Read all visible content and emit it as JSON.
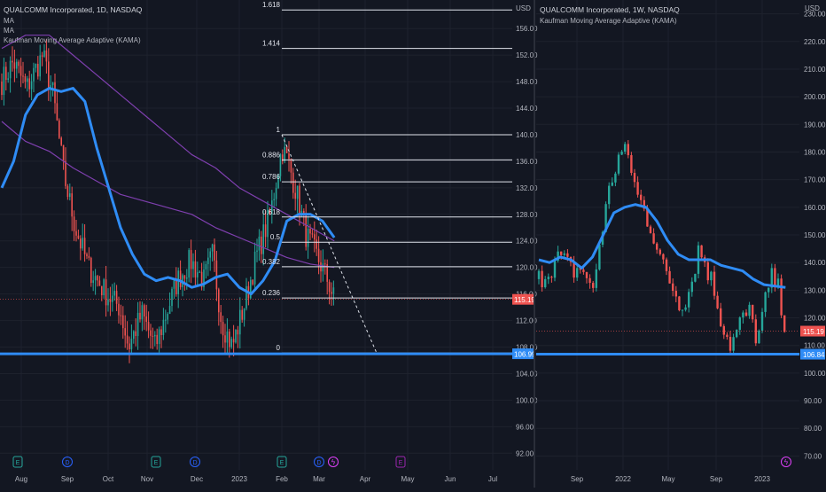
{
  "theme": {
    "background": "#131722",
    "grid": "#1e222d",
    "divider": "#2a2e39",
    "text": "#b2b5be",
    "up": "#26a69a",
    "down": "#ef5350",
    "kama": "#2f8cf5",
    "ma": "#7e3fae",
    "fib_line": "#e0e3eb",
    "support": "#2f8cf5",
    "last_price_tag": "#ef5350",
    "support_tag": "#2f8cf5"
  },
  "chart_data": [
    {
      "type": "candlestick",
      "title": "QUALCOMM Incorporated, 1D, NASDAQ",
      "indicators": [
        "MA",
        "MA",
        "Kaufman Moving Average Adaptive (KAMA)"
      ],
      "price_unit": "USD",
      "ylim": [
        89.5,
        160.3
      ],
      "yticks": [
        "92.00",
        "96.00",
        "100.00",
        "104.00",
        "108.00",
        "112.00",
        "116.00",
        "120.00",
        "124.00",
        "128.00",
        "132.00",
        "136.00",
        "140.00",
        "144.00",
        "148.00",
        "152.00",
        "156.00"
      ],
      "xticks": [
        "Aug",
        "Sep",
        "Oct",
        "Nov",
        "Dec",
        "2023",
        "Feb",
        "Mar",
        "Apr",
        "May",
        "Jun",
        "Jul"
      ],
      "last_price": "115.19",
      "support_price": "106.99",
      "support_level": 106.99,
      "fib_levels": [
        {
          "label": "1.618",
          "price": 158.8
        },
        {
          "label": "1.414",
          "price": 153.0
        },
        {
          "label": "1",
          "price": 140.0
        },
        {
          "label": "0.886",
          "price": 136.2
        },
        {
          "label": "0.786",
          "price": 132.9
        },
        {
          "label": "0.618",
          "price": 127.6
        },
        {
          "label": "0.5",
          "price": 123.8
        },
        {
          "label": "0.382",
          "price": 120.1
        },
        {
          "label": "0.236",
          "price": 115.4
        },
        {
          "label": "0",
          "price": 107.1
        }
      ],
      "fib_level_values": [
        "1.618",
        "1.414",
        "1",
        "0.886",
        "0.786",
        "0.618",
        "0.5",
        "0.382",
        "0.236",
        "0"
      ],
      "kama_points": [
        [
          0,
          132
        ],
        [
          1,
          136
        ],
        [
          2,
          143
        ],
        [
          3,
          146
        ],
        [
          4,
          147
        ],
        [
          5,
          146.5
        ],
        [
          6,
          147
        ],
        [
          7,
          145
        ],
        [
          8,
          138
        ],
        [
          9,
          132
        ],
        [
          10,
          126
        ],
        [
          11,
          122
        ],
        [
          12,
          119
        ],
        [
          13,
          118
        ],
        [
          14,
          118.5
        ],
        [
          15,
          118
        ],
        [
          16,
          117
        ],
        [
          17,
          117.5
        ],
        [
          18,
          118.5
        ],
        [
          19,
          119
        ],
        [
          20,
          117
        ],
        [
          21,
          116
        ],
        [
          22,
          118
        ],
        [
          23,
          121
        ],
        [
          24,
          127
        ],
        [
          25,
          128
        ],
        [
          26,
          128
        ],
        [
          27,
          127
        ],
        [
          28,
          124.5
        ]
      ],
      "ma1_points": [
        [
          0,
          153
        ],
        [
          2,
          155
        ],
        [
          4,
          155
        ],
        [
          6,
          152
        ],
        [
          8,
          149
        ],
        [
          10,
          146
        ],
        [
          12,
          143
        ],
        [
          14,
          140
        ],
        [
          16,
          137
        ],
        [
          18,
          135
        ],
        [
          20,
          132
        ],
        [
          22,
          130
        ],
        [
          24,
          128
        ],
        [
          26,
          126
        ],
        [
          28,
          124
        ]
      ],
      "ma2_points": [
        [
          0,
          142
        ],
        [
          2,
          139
        ],
        [
          4,
          137.5
        ],
        [
          6,
          135
        ],
        [
          8,
          133
        ],
        [
          10,
          131
        ],
        [
          12,
          130
        ],
        [
          14,
          129
        ],
        [
          16,
          128
        ],
        [
          18,
          126
        ],
        [
          20,
          124.5
        ],
        [
          22,
          123
        ],
        [
          24,
          121.5
        ],
        [
          26,
          120.5
        ],
        [
          28,
          120
        ]
      ],
      "events": [
        "E",
        "D",
        "E",
        "D",
        "E",
        "D",
        "lightning",
        "E"
      ]
    },
    {
      "type": "candlestick",
      "title": "QUALCOMM Incorporated, 1W, NASDAQ",
      "indicators": [
        "Kaufman Moving Average Adaptive (KAMA)"
      ],
      "price_unit": "USD",
      "ylim": [
        65,
        235
      ],
      "yticks": [
        "70.00",
        "80.00",
        "90.00",
        "100.00",
        "110.00",
        "120.00",
        "130.00",
        "140.00",
        "150.00",
        "160.00",
        "170.00",
        "180.00",
        "190.00",
        "200.00",
        "210.00",
        "220.00",
        "230.00"
      ],
      "xticks": [
        "Sep",
        "2022",
        "May",
        "Sep",
        "2023"
      ],
      "last_price": "115.19",
      "support_price": "106.84",
      "support_level": 106.84,
      "kama_points": [
        [
          0,
          141
        ],
        [
          2,
          140
        ],
        [
          4,
          142
        ],
        [
          6,
          141
        ],
        [
          8,
          138
        ],
        [
          10,
          142
        ],
        [
          12,
          150
        ],
        [
          14,
          158
        ],
        [
          16,
          160
        ],
        [
          18,
          161
        ],
        [
          20,
          160
        ],
        [
          22,
          155
        ],
        [
          24,
          148
        ],
        [
          26,
          143
        ],
        [
          28,
          141
        ],
        [
          30,
          141
        ],
        [
          32,
          141
        ],
        [
          34,
          139
        ],
        [
          36,
          138
        ],
        [
          38,
          137
        ],
        [
          40,
          134
        ],
        [
          42,
          132
        ],
        [
          44,
          131.5
        ],
        [
          46,
          131
        ]
      ]
    }
  ]
}
